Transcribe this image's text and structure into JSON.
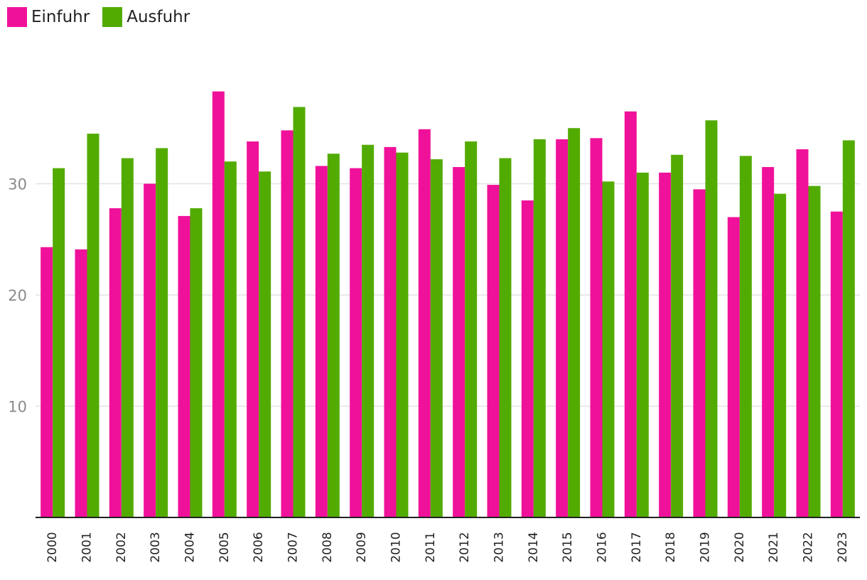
{
  "colors": {
    "Einfuhr": "#f0119a",
    "Ausfuhr": "#52ab00",
    "grid": "#e2e2e2",
    "axis": "#222222",
    "ytick": "#8a8a8a",
    "xtick": "#222222"
  },
  "legend": {
    "items": [
      {
        "label": "Einfuhr"
      },
      {
        "label": "Ausfuhr"
      }
    ]
  },
  "chart_data": {
    "type": "bar",
    "title": "",
    "xlabel": "",
    "ylabel": "",
    "categories": [
      "2000",
      "2001",
      "2002",
      "2003",
      "2004",
      "2005",
      "2006",
      "2007",
      "2008",
      "2009",
      "2010",
      "2011",
      "2012",
      "2013",
      "2014",
      "2015",
      "2016",
      "2017",
      "2018",
      "2019",
      "2020",
      "2021",
      "2022",
      "2023"
    ],
    "series": [
      {
        "name": "Einfuhr",
        "values": [
          24.3,
          24.1,
          27.8,
          30.0,
          27.1,
          38.3,
          33.8,
          34.8,
          31.6,
          31.4,
          33.3,
          34.9,
          31.5,
          29.9,
          28.5,
          34.0,
          34.1,
          36.5,
          31.0,
          29.5,
          27.0,
          31.5,
          33.1,
          27.5
        ]
      },
      {
        "name": "Ausfuhr",
        "values": [
          31.4,
          34.5,
          32.3,
          33.2,
          27.8,
          32.0,
          31.1,
          36.9,
          32.7,
          33.5,
          32.8,
          32.2,
          33.8,
          32.3,
          34.0,
          35.0,
          30.2,
          31.0,
          32.6,
          35.7,
          32.5,
          29.1,
          29.8,
          33.9
        ]
      }
    ],
    "ylim": [
      0,
      42
    ],
    "yticks": [
      "10",
      "20",
      "30"
    ],
    "grid": true,
    "legend_position": "top-left"
  }
}
